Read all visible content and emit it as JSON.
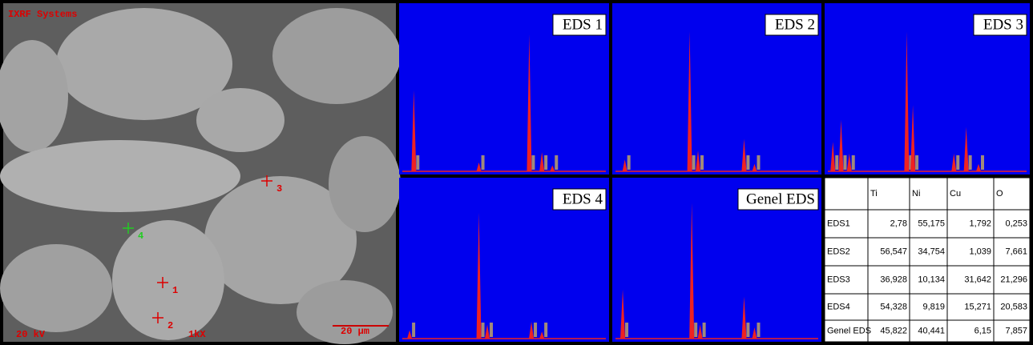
{
  "sem": {
    "brand": "IXRF Systems",
    "voltage": "20 kV",
    "magnification": "1kX",
    "scale": "20 µm",
    "points": [
      "1",
      "2",
      "3",
      "4"
    ]
  },
  "panels": [
    "EDS 1",
    "EDS 2",
    "EDS 3",
    "EDS 4",
    "Genel EDS"
  ],
  "table": {
    "header": [
      "Ti",
      "Ni",
      "Cu",
      "O"
    ],
    "rows": [
      [
        "EDS1",
        "2,78",
        "55,175",
        "1,792",
        "0,253"
      ],
      [
        "EDS2",
        "56,547",
        "34,754",
        "1,039",
        "7,661"
      ],
      [
        "EDS3",
        "36,928",
        "10,134",
        "31,642",
        "21,296"
      ],
      [
        "EDS4",
        "54,328",
        "9,819",
        "15,271",
        "20,583"
      ],
      [
        "Genel EDS",
        "45,822",
        "40,441",
        "6,15",
        "7,857"
      ]
    ]
  }
}
